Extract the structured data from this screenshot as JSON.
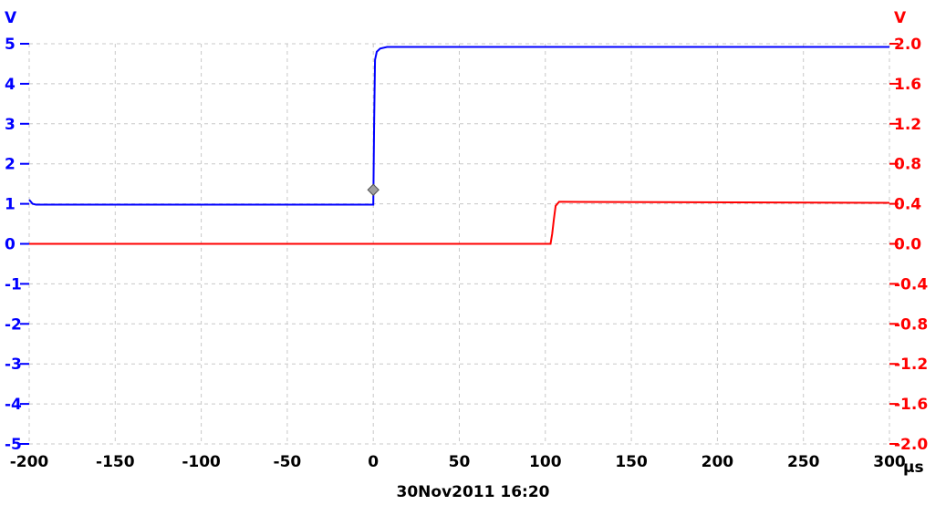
{
  "chart_data": {
    "type": "line",
    "x_unit": "µs",
    "x_ticks": [
      "-200",
      "-150",
      "-100",
      "-50",
      "0",
      "50",
      "100",
      "150",
      "200",
      "250",
      "300"
    ],
    "xlim": [
      -200,
      300
    ],
    "y_left": {
      "unit": "V",
      "color": "#0000ff",
      "ylim": [
        -5,
        5
      ],
      "ticks": [
        "5",
        "4",
        "3",
        "2",
        "1",
        "0",
        "-1",
        "-2",
        "-3",
        "-4",
        "-5"
      ]
    },
    "y_right": {
      "unit": "V",
      "color": "#ff0000",
      "ylim": [
        -2.0,
        2.0
      ],
      "ticks": [
        "2.0",
        "1.6",
        "1.2",
        "0.8",
        "0.4",
        "0.0",
        "-0.4",
        "-0.8",
        "-1.2",
        "-1.6",
        "-2.0"
      ]
    },
    "grid": true,
    "series": [
      {
        "axis": "left",
        "color": "#0000ff",
        "x": [
          -200,
          -198,
          -196,
          -190,
          0,
          0.5,
          1,
          2,
          4,
          8,
          300
        ],
        "y": [
          1.1,
          1.0,
          0.98,
          0.98,
          0.98,
          3.0,
          4.6,
          4.8,
          4.88,
          4.92,
          4.92
        ]
      },
      {
        "axis": "right",
        "color": "#ff0000",
        "x": [
          -200,
          103,
          104,
          105,
          106,
          108,
          110,
          300
        ],
        "y": [
          0.0,
          0.0,
          0.1,
          0.25,
          0.38,
          0.42,
          0.42,
          0.41
        ]
      }
    ],
    "trigger_marker": {
      "x": 0,
      "y": 1.35,
      "axis": "left"
    },
    "timestamp": "30Nov2011  16:20"
  }
}
